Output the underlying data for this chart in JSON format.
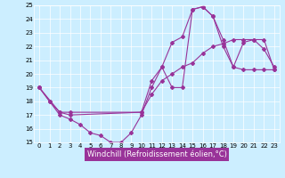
{
  "xlabel": "Windchill (Refroidissement éolien,°C)",
  "xlim": [
    -0.5,
    23.5
  ],
  "ylim": [
    15,
    25
  ],
  "xticks": [
    0,
    1,
    2,
    3,
    4,
    5,
    6,
    7,
    8,
    9,
    10,
    11,
    12,
    13,
    14,
    15,
    16,
    17,
    18,
    19,
    20,
    21,
    22,
    23
  ],
  "yticks": [
    15,
    16,
    17,
    18,
    19,
    20,
    21,
    22,
    23,
    24,
    25
  ],
  "line_color": "#993399",
  "bg_color": "#cceeff",
  "lines": [
    {
      "x": [
        0,
        1,
        2,
        3,
        4,
        5,
        6,
        7,
        8,
        9,
        10,
        11,
        12,
        13,
        14,
        15,
        16,
        17,
        18,
        19,
        20,
        21,
        22,
        23
      ],
      "y": [
        19,
        18,
        17,
        16.7,
        16.3,
        15.7,
        15.5,
        15.0,
        15.0,
        15.7,
        17.0,
        19.0,
        20.5,
        19.0,
        19.0,
        24.7,
        24.9,
        24.2,
        22.5,
        20.5,
        20.3,
        20.3,
        20.3,
        20.3
      ]
    },
    {
      "x": [
        0,
        2,
        3,
        10,
        11,
        12,
        13,
        14,
        15,
        16,
        17,
        18,
        19,
        20,
        21,
        22,
        23
      ],
      "y": [
        19,
        17.2,
        17.2,
        17.2,
        19.5,
        20.5,
        22.3,
        22.7,
        24.7,
        24.9,
        24.2,
        22.0,
        20.5,
        22.3,
        22.5,
        21.8,
        20.5
      ]
    },
    {
      "x": [
        0,
        1,
        2,
        3,
        10,
        11,
        12,
        13,
        14,
        15,
        16,
        17,
        18,
        19,
        20,
        21,
        22,
        23
      ],
      "y": [
        19,
        18,
        17.2,
        17.0,
        17.2,
        18.5,
        19.5,
        20.0,
        20.5,
        20.8,
        21.5,
        22.0,
        22.2,
        22.5,
        22.5,
        22.5,
        22.5,
        20.3
      ]
    }
  ],
  "marker": "D",
  "markersize": 2.0,
  "linewidth": 0.8,
  "tick_fontsize": 5.0,
  "xlabel_fontsize": 6.0,
  "grid_color": "#aadddd",
  "label_bg_color": "#993399",
  "label_fg_color": "#ffffff"
}
